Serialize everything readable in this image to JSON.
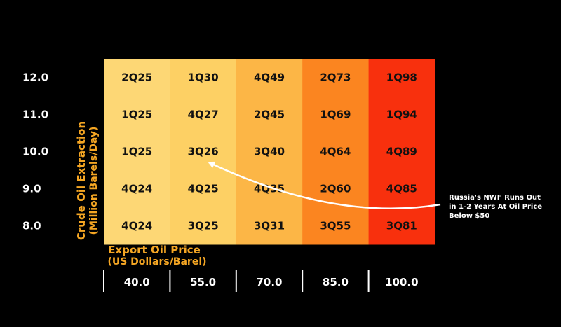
{
  "chart_data": {
    "type": "heatmap",
    "xlabel": "Export Oil Price",
    "xlabel_unit": "(US Dollars/Barel)",
    "ylabel": "Crude Oil Extraction",
    "ylabel_unit": "(Million Barels/Day)",
    "x": [
      "40.0",
      "55.0",
      "70.0",
      "85.0",
      "100.0"
    ],
    "y": [
      "12.0",
      "11.0",
      "10.0",
      "9.0",
      "8.0"
    ],
    "cells": [
      [
        "2Q25",
        "1Q30",
        "4Q49",
        "2Q73",
        "1Q98"
      ],
      [
        "1Q25",
        "4Q27",
        "2Q45",
        "1Q69",
        "1Q94"
      ],
      [
        "1Q25",
        "3Q26",
        "3Q40",
        "4Q64",
        "4Q89"
      ],
      [
        "4Q24",
        "4Q25",
        "4Q35",
        "2Q60",
        "4Q85"
      ],
      [
        "4Q24",
        "3Q25",
        "3Q31",
        "3Q55",
        "3Q81"
      ]
    ],
    "column_colors": [
      "#fdd775",
      "#fdd064",
      "#fcb646",
      "#fb8520",
      "#f8300d"
    ],
    "annotation": {
      "lines": [
        "Russia's NWF Runs Out",
        "in 1-2 Years At Oil Price",
        "Below $50"
      ],
      "points_to": {
        "x": "55.0",
        "y": "10.0"
      },
      "color": "#ffffff"
    }
  }
}
